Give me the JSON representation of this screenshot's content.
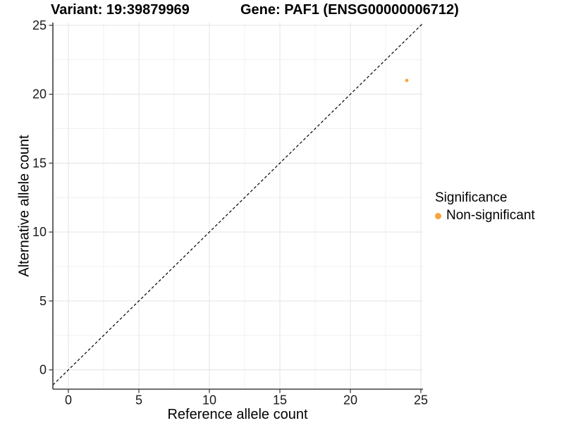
{
  "titles": {
    "variant": "Variant: 19:39879969",
    "gene": "Gene: PAF1 (ENSG00000006712)"
  },
  "axes": {
    "x_label": "Reference allele count",
    "y_label": "Alternative allele count"
  },
  "legend": {
    "title": "Significance",
    "items": [
      {
        "label": "Non-significant",
        "color": "#F9A43B"
      }
    ]
  },
  "colors": {
    "background": "#ffffff",
    "grid_major": "#e3e3e3",
    "grid_minor": "#f0f0f0",
    "axis_line": "#404040",
    "tick_text": "#1a1a1a",
    "reference_line": "#000000",
    "point": "#F9A43B"
  },
  "chart_data": {
    "type": "scatter",
    "title": "Variant: 19:39879969 — Gene: PAF1 (ENSG00000006712)",
    "xlabel": "Reference allele count",
    "ylabel": "Alternative allele count",
    "xlim": [
      -1.1,
      25.1
    ],
    "ylim": [
      -1.4,
      25.2
    ],
    "x_major_ticks": [
      0,
      5,
      10,
      15,
      20,
      25
    ],
    "x_minor_ticks": [
      2.5,
      7.5,
      12.5,
      17.5,
      22.5
    ],
    "y_major_ticks": [
      0,
      5,
      10,
      15,
      20,
      25
    ],
    "y_minor_ticks": [
      2.5,
      7.5,
      12.5,
      17.5,
      22.5
    ],
    "grid": true,
    "legend_position": "right",
    "reference_line": {
      "type": "identity",
      "style": "dashed"
    },
    "series": [
      {
        "name": "Non-significant",
        "points": [
          {
            "x": 24,
            "y": 21
          }
        ]
      }
    ]
  }
}
